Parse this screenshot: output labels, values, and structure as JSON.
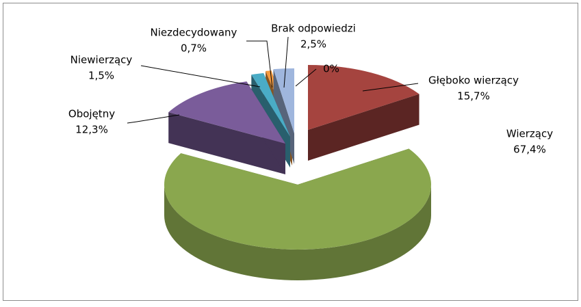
{
  "chart_data": {
    "type": "pie3d",
    "categories": [
      "Głęboko wierzący",
      "Wierzący",
      "Obojętny",
      "Niewierzący",
      "Niezdecydowany",
      "Brak odpowiedzi",
      null
    ],
    "values": [
      15.7,
      67.4,
      12.3,
      1.5,
      0.7,
      2.5,
      0
    ],
    "value_labels": [
      "15,7%",
      "67,4%",
      "12,3%",
      "1,5%",
      "0,7%",
      "2,5%",
      "0%"
    ],
    "colors": [
      "#a5443f",
      "#8aa74e",
      "#7a5c9a",
      "#4aacc6",
      "#f59a3e",
      "#9fb6dd",
      "#c0504d"
    ]
  }
}
